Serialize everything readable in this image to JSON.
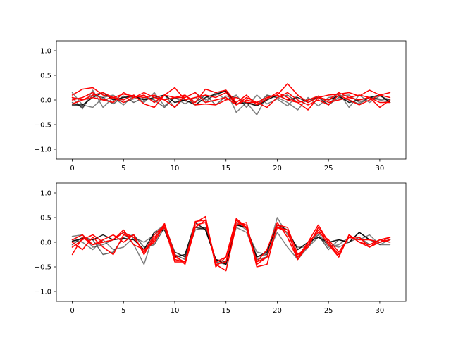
{
  "chart_data": [
    {
      "type": "line",
      "title": "",
      "xlabel": "",
      "ylabel": "",
      "xlim": [
        -1.55,
        32.55
      ],
      "ylim": [
        -1.2,
        1.2
      ],
      "xticks": [
        0,
        5,
        10,
        15,
        20,
        25,
        30
      ],
      "yticks": [
        -1.0,
        -0.5,
        0.0,
        0.5,
        1.0
      ],
      "xtick_labels": [
        "0",
        "5",
        "10",
        "15",
        "20",
        "25",
        "30"
      ],
      "ytick_labels": [
        "−1.0",
        "−0.5",
        "0.0",
        "0.5",
        "1.0"
      ],
      "grid": false,
      "x": [
        0,
        1,
        2,
        3,
        4,
        5,
        6,
        7,
        8,
        9,
        10,
        11,
        12,
        13,
        14,
        15,
        16,
        17,
        18,
        19,
        20,
        21,
        22,
        23,
        24,
        25,
        26,
        27,
        28,
        29,
        30,
        31
      ],
      "series": [
        {
          "color": "#000000",
          "alpha": 0.5,
          "values": [
            0.15,
            -0.1,
            -0.15,
            0.05,
            0.1,
            -0.05,
            0.02,
            0.1,
            -0.05,
            0.1,
            -0.15,
            0.05,
            0.15,
            0.0,
            0.1,
            0.2,
            -0.25,
            -0.05,
            -0.3,
            0.08,
            0.05,
            -0.05,
            -0.2,
            0.05,
            -0.12,
            0.05,
            0.08,
            0.1,
            -0.05,
            0.05,
            0.0,
            -0.05
          ]
        },
        {
          "color": "#000000",
          "alpha": 0.5,
          "values": [
            0.05,
            -0.18,
            0.2,
            -0.15,
            0.05,
            -0.1,
            0.1,
            -0.05,
            0.15,
            -0.12,
            0.05,
            -0.08,
            0.05,
            -0.05,
            0.15,
            0.0,
            0.1,
            -0.15,
            0.1,
            -0.08,
            0.02,
            -0.12,
            0.1,
            -0.05,
            0.08,
            -0.1,
            0.15,
            -0.15,
            0.1,
            -0.05,
            0.08,
            0.0
          ]
        },
        {
          "color": "#000000",
          "alpha": 0.6,
          "values": [
            -0.05,
            -0.15,
            0.1,
            0.05,
            -0.08,
            0.08,
            -0.05,
            0.05,
            0.0,
            -0.15,
            0.05,
            -0.02,
            -0.05,
            0.1,
            -0.1,
            0.08,
            0.05,
            -0.05,
            -0.1,
            0.1,
            0.05,
            0.1,
            -0.05,
            0.0,
            0.05,
            -0.1,
            0.05,
            0.0,
            -0.08,
            0.05,
            0.02,
            0.0
          ]
        },
        {
          "color": "#000000",
          "alpha": 0.9,
          "values": [
            -0.1,
            -0.1,
            0.05,
            0.15,
            0.0,
            0.05,
            0.08,
            0.0,
            0.05,
            0.1,
            -0.05,
            0.0,
            -0.1,
            0.05,
            0.12,
            0.18,
            -0.08,
            -0.05,
            -0.12,
            0.0,
            0.1,
            0.0,
            0.05,
            -0.05,
            0.05,
            0.0,
            0.08,
            -0.05,
            0.0,
            0.05,
            0.1,
            -0.05
          ]
        },
        {
          "color": "#ff0000",
          "alpha": 1.0,
          "values": [
            0.1,
            0.22,
            0.25,
            0.1,
            0.05,
            -0.05,
            0.05,
            0.1,
            -0.05,
            0.1,
            0.25,
            0.0,
            0.05,
            0.1,
            0.05,
            0.15,
            -0.1,
            0.05,
            -0.05,
            0.05,
            0.1,
            0.33,
            0.1,
            -0.05,
            0.05,
            0.1,
            0.12,
            0.15,
            0.08,
            0.2,
            0.1,
            0.15
          ]
        },
        {
          "color": "#ff0000",
          "alpha": 1.0,
          "values": [
            0.0,
            0.05,
            0.15,
            0.0,
            0.05,
            0.12,
            0.08,
            0.05,
            0.1,
            0.0,
            0.05,
            0.1,
            -0.05,
            0.22,
            0.15,
            0.2,
            -0.05,
            0.1,
            -0.1,
            0.02,
            0.15,
            0.05,
            -0.05,
            -0.2,
            0.05,
            0.0,
            0.15,
            0.05,
            0.1,
            0.05,
            -0.15,
            0.0
          ]
        },
        {
          "color": "#ff0000",
          "alpha": 1.0,
          "values": [
            -0.08,
            0.0,
            0.05,
            0.0,
            -0.05,
            0.15,
            0.05,
            0.15,
            0.05,
            0.0,
            -0.15,
            0.1,
            -0.1,
            -0.08,
            -0.1,
            0.0,
            0.05,
            -0.05,
            -0.05,
            0.05,
            0.1,
            0.0,
            -0.05,
            0.0,
            0.08,
            -0.05,
            0.0,
            0.05,
            0.0,
            0.05,
            -0.05,
            -0.05
          ]
        },
        {
          "color": "#ff0000",
          "alpha": 1.0,
          "values": [
            0.05,
            0.0,
            0.1,
            0.15,
            0.05,
            0.0,
            0.1,
            -0.08,
            -0.15,
            0.1,
            0.05,
            0.05,
            0.15,
            -0.05,
            0.0,
            0.05,
            -0.1,
            0.0,
            -0.05,
            -0.15,
            0.05,
            0.15,
            0.0,
            -0.1,
            0.0,
            -0.1,
            0.1,
            0.0,
            -0.1,
            0.0,
            0.1,
            0.05
          ]
        }
      ]
    },
    {
      "type": "line",
      "title": "",
      "xlabel": "",
      "ylabel": "",
      "xlim": [
        -1.55,
        32.55
      ],
      "ylim": [
        -1.2,
        1.2
      ],
      "xticks": [
        0,
        5,
        10,
        15,
        20,
        25,
        30
      ],
      "yticks": [
        -1.0,
        -0.5,
        0.0,
        0.5,
        1.0
      ],
      "xtick_labels": [
        "0",
        "5",
        "10",
        "15",
        "20",
        "25",
        "30"
      ],
      "ytick_labels": [
        "−1.0",
        "−0.5",
        "0.0",
        "0.5",
        "1.0"
      ],
      "grid": false,
      "x": [
        0,
        1,
        2,
        3,
        4,
        5,
        6,
        7,
        8,
        9,
        10,
        11,
        12,
        13,
        14,
        15,
        16,
        17,
        18,
        19,
        20,
        21,
        22,
        23,
        24,
        25,
        26,
        27,
        28,
        29,
        30,
        31
      ],
      "series": [
        {
          "color": "#000000",
          "alpha": 0.5,
          "values": [
            0.12,
            0.15,
            -0.1,
            -0.05,
            0.05,
            0.2,
            -0.05,
            -0.45,
            0.2,
            0.35,
            -0.2,
            -0.3,
            0.3,
            0.25,
            -0.35,
            -0.4,
            0.3,
            0.2,
            -0.3,
            -0.25,
            0.5,
            0.15,
            -0.1,
            -0.1,
            0.1,
            -0.05,
            -0.1,
            0.0,
            0.2,
            0.05,
            -0.05,
            -0.05
          ]
        },
        {
          "color": "#000000",
          "alpha": 0.5,
          "values": [
            0.05,
            0.0,
            -0.15,
            0.05,
            -0.15,
            -0.1,
            0.1,
            0.0,
            0.15,
            0.3,
            -0.2,
            -0.3,
            0.3,
            0.28,
            -0.35,
            -0.4,
            0.4,
            0.25,
            -0.2,
            -0.25,
            0.2,
            -0.1,
            -0.35,
            -0.1,
            0.2,
            -0.1,
            -0.05,
            0.1,
            0.05,
            0.15,
            -0.05,
            0.05
          ]
        },
        {
          "color": "#000000",
          "alpha": 0.6,
          "values": [
            -0.05,
            0.1,
            0.05,
            -0.25,
            -0.2,
            0.1,
            0.15,
            -0.1,
            -0.05,
            0.3,
            -0.25,
            -0.35,
            0.25,
            0.3,
            -0.4,
            -0.45,
            0.35,
            0.3,
            -0.35,
            -0.3,
            0.3,
            0.2,
            -0.3,
            -0.05,
            0.15,
            -0.15,
            0.05,
            0.0,
            0.1,
            -0.05,
            0.05,
            0.0
          ]
        },
        {
          "color": "#000000",
          "alpha": 0.9,
          "values": [
            0.02,
            0.08,
            0.05,
            0.15,
            0.05,
            0.08,
            0.05,
            -0.15,
            0.2,
            0.25,
            -0.3,
            -0.25,
            0.4,
            0.25,
            -0.35,
            -0.45,
            0.35,
            0.3,
            -0.3,
            -0.2,
            0.35,
            0.25,
            -0.15,
            0.0,
            0.1,
            0.0,
            0.05,
            0.0,
            0.2,
            0.05,
            0.0,
            0.05
          ]
        },
        {
          "color": "#ff0000",
          "alpha": 1.0,
          "values": [
            -0.25,
            0.1,
            -0.05,
            0.0,
            0.05,
            0.25,
            -0.05,
            -0.15,
            0.0,
            0.35,
            -0.3,
            -0.4,
            0.4,
            0.52,
            -0.5,
            -0.3,
            0.48,
            0.3,
            -0.4,
            -0.15,
            0.4,
            0.1,
            -0.35,
            0.0,
            0.35,
            0.0,
            -0.3,
            0.15,
            0.0,
            -0.1,
            0.0,
            0.1
          ]
        },
        {
          "color": "#ff0000",
          "alpha": 1.0,
          "values": [
            0.0,
            -0.15,
            0.1,
            -0.1,
            -0.25,
            0.15,
            0.1,
            -0.2,
            0.05,
            0.38,
            -0.25,
            -0.45,
            0.3,
            0.45,
            -0.45,
            -0.58,
            0.35,
            0.4,
            -0.5,
            -0.45,
            0.35,
            0.3,
            -0.25,
            -0.1,
            0.3,
            0.0,
            -0.25,
            0.1,
            0.05,
            0.05,
            0.0,
            0.05
          ]
        },
        {
          "color": "#ff0000",
          "alpha": 1.0,
          "values": [
            -0.1,
            0.05,
            0.15,
            0.0,
            0.05,
            0.2,
            0.1,
            -0.2,
            0.15,
            0.35,
            -0.4,
            -0.4,
            0.42,
            0.45,
            -0.4,
            -0.3,
            0.45,
            0.28,
            -0.45,
            -0.3,
            0.3,
            0.2,
            -0.3,
            0.0,
            0.2,
            0.05,
            -0.2,
            0.1,
            0.1,
            -0.1,
            0.05,
            0.0
          ]
        },
        {
          "color": "#ff0000",
          "alpha": 1.0,
          "values": [
            0.05,
            0.15,
            -0.05,
            0.05,
            0.15,
            0.0,
            0.15,
            -0.25,
            0.1,
            0.3,
            -0.35,
            -0.4,
            0.35,
            0.4,
            -0.45,
            -0.4,
            0.4,
            0.35,
            -0.4,
            -0.3,
            0.3,
            0.25,
            -0.35,
            -0.05,
            0.25,
            -0.05,
            -0.3,
            0.15,
            0.0,
            -0.05,
            0.05,
            0.1
          ]
        }
      ]
    }
  ]
}
